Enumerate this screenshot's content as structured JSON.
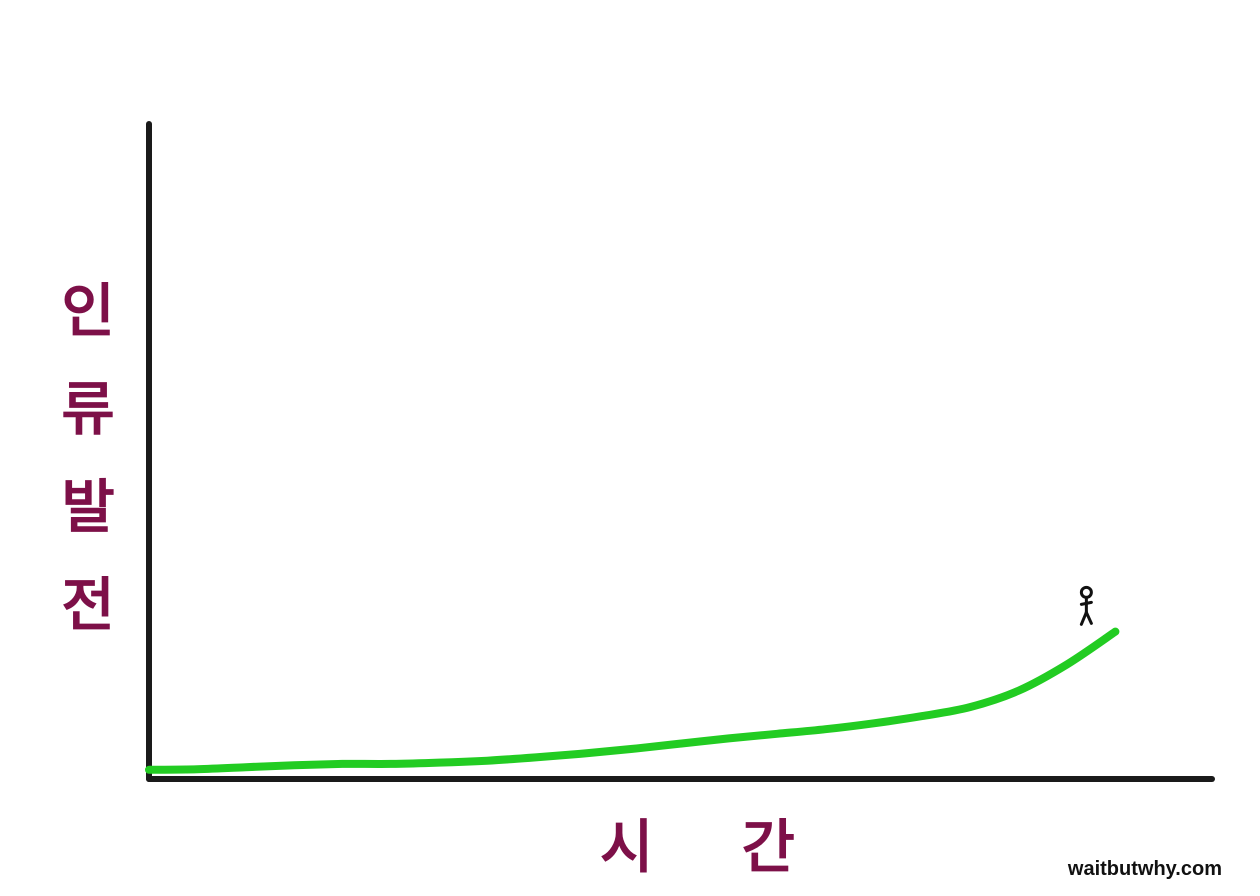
{
  "chart_data": {
    "type": "line",
    "title": "",
    "xlabel": "시 간",
    "ylabel": "인류발전",
    "ylabel_chars": [
      "인",
      "류",
      "발",
      "전"
    ],
    "x": [
      0,
      5,
      10,
      15,
      20,
      25,
      30,
      35,
      40,
      45,
      50,
      55,
      60,
      65,
      70,
      75,
      80,
      85,
      90,
      95,
      100
    ],
    "series": [
      {
        "values": [
          1.4,
          1.5,
          1.8,
          2.1,
          2.3,
          2.3,
          2.5,
          2.8,
          3.3,
          3.9,
          4.6,
          5.4,
          6.2,
          6.9,
          7.6,
          8.5,
          9.6,
          11.0,
          13.5,
          17.5,
          22.5
        ]
      }
    ],
    "xlim": [
      0,
      110
    ],
    "ylim": [
      0,
      100
    ],
    "grid": false,
    "legend": "none",
    "annotations": [
      {
        "type": "stick-figure",
        "x": 97,
        "y": 23
      }
    ],
    "colors": {
      "line": "#22cc22",
      "axis": "#1a1a1a",
      "label": "#7d1048"
    }
  },
  "credit": "waitbutwhy.com"
}
